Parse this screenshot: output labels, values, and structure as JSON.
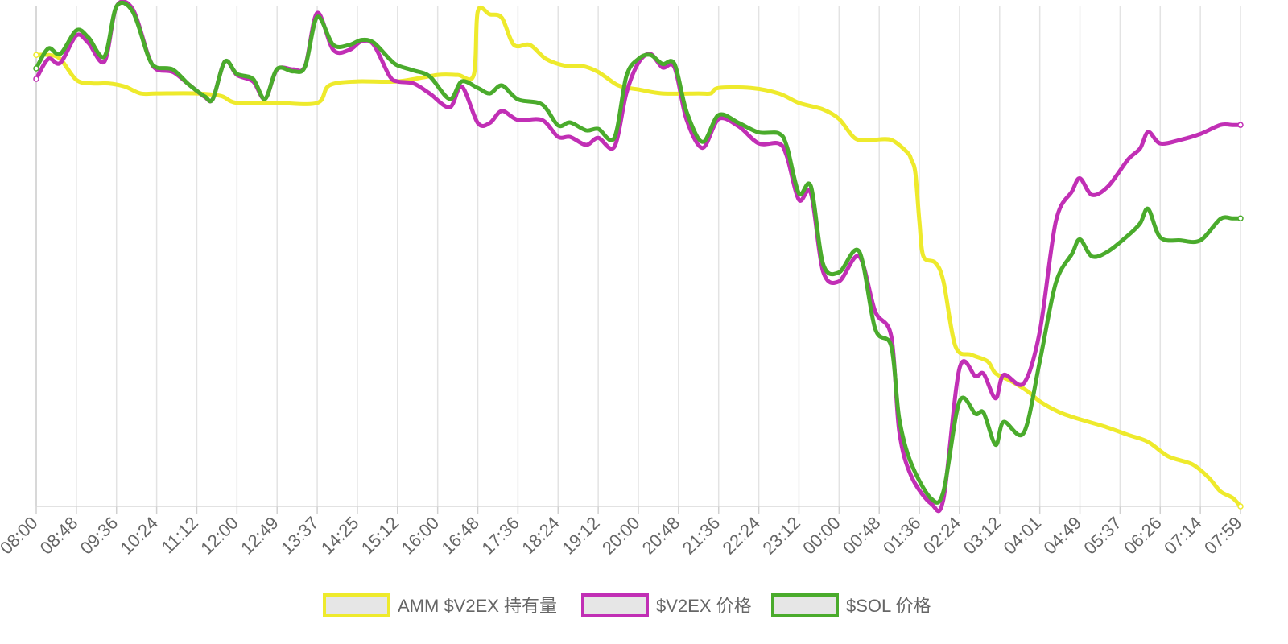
{
  "chart_data": {
    "type": "line",
    "title": "",
    "xlabel": "",
    "ylabel": "",
    "grid": "vertical",
    "legend_position": "bottom",
    "x_ticks": [
      "08:00",
      "08:48",
      "09:36",
      "10:24",
      "11:12",
      "12:00",
      "12:49",
      "13:37",
      "14:25",
      "15:12",
      "16:00",
      "16:48",
      "17:36",
      "18:24",
      "19:12",
      "20:00",
      "20:48",
      "21:36",
      "22:24",
      "23:12",
      "00:00",
      "00:48",
      "01:36",
      "02:24",
      "03:12",
      "04:01",
      "04:49",
      "05:37",
      "06:26",
      "07:14",
      "07:59"
    ],
    "x_range": [
      0,
      30
    ],
    "y_range": [
      0,
      100
    ],
    "y_axis_labels_shown": false,
    "series": [
      {
        "name": "AMM $V2EX 持有量",
        "color": "#eeea2c",
        "points": [
          [
            0,
            90.3
          ],
          [
            0.3,
            90.3
          ],
          [
            0.6,
            89.5
          ],
          [
            1,
            85.3
          ],
          [
            1.4,
            84.6
          ],
          [
            1.8,
            84.6
          ],
          [
            2.2,
            84.0
          ],
          [
            2.6,
            82.6
          ],
          [
            3,
            82.6
          ],
          [
            4,
            82.6
          ],
          [
            4.6,
            82.1
          ],
          [
            5,
            80.7
          ],
          [
            6,
            80.7
          ],
          [
            7,
            80.7
          ],
          [
            7.3,
            84.2
          ],
          [
            8,
            85.0
          ],
          [
            9,
            85.0
          ],
          [
            10,
            86.3
          ],
          [
            10.5,
            86.3
          ],
          [
            10.9,
            86.3
          ],
          [
            11,
            99.0
          ],
          [
            11.3,
            98.4
          ],
          [
            11.6,
            97.7
          ],
          [
            11.9,
            92.3
          ],
          [
            12.3,
            92.3
          ],
          [
            12.7,
            89.5
          ],
          [
            13.2,
            88.1
          ],
          [
            13.6,
            88.1
          ],
          [
            14,
            86.9
          ],
          [
            14.5,
            84.2
          ],
          [
            15,
            83.4
          ],
          [
            15.6,
            82.6
          ],
          [
            16.5,
            82.6
          ],
          [
            16.8,
            82.6
          ],
          [
            17,
            83.7
          ],
          [
            17.8,
            83.7
          ],
          [
            18.5,
            82.6
          ],
          [
            19,
            80.7
          ],
          [
            19.6,
            79.4
          ],
          [
            20,
            77.5
          ],
          [
            20.4,
            73.6
          ],
          [
            20.8,
            73.3
          ],
          [
            21.3,
            73.3
          ],
          [
            21.7,
            70.8
          ],
          [
            21.8,
            69.3
          ],
          [
            21.9,
            66.7
          ],
          [
            22,
            57.0
          ],
          [
            22.1,
            50.0
          ],
          [
            22.4,
            48.7
          ],
          [
            22.6,
            45.0
          ],
          [
            22.9,
            32.0
          ],
          [
            23.3,
            30.3
          ],
          [
            23.7,
            29.0
          ],
          [
            23.9,
            26.6
          ],
          [
            24.3,
            25.0
          ],
          [
            24.7,
            23.0
          ],
          [
            25,
            21.0
          ],
          [
            25.5,
            18.8
          ],
          [
            26,
            17.4
          ],
          [
            26.6,
            16.0
          ],
          [
            27.2,
            14.3
          ],
          [
            27.7,
            12.9
          ],
          [
            28.2,
            10.0
          ],
          [
            28.8,
            8.4
          ],
          [
            29.2,
            5.8
          ],
          [
            29.5,
            3.0
          ],
          [
            29.8,
            1.7
          ],
          [
            30,
            0.0
          ]
        ]
      },
      {
        "name": "$V2EX 价格",
        "color": "#c12fb5",
        "points": [
          [
            0,
            85.5
          ],
          [
            0.3,
            89.5
          ],
          [
            0.6,
            88.7
          ],
          [
            1,
            94.2
          ],
          [
            1.3,
            92.7
          ],
          [
            1.7,
            89.0
          ],
          [
            2,
            100.0
          ],
          [
            2.4,
            99.5
          ],
          [
            2.8,
            90.0
          ],
          [
            3,
            87.4
          ],
          [
            3.4,
            86.9
          ],
          [
            3.8,
            84.4
          ],
          [
            4.2,
            81.9
          ],
          [
            4.4,
            81.5
          ],
          [
            4.7,
            89.0
          ],
          [
            5,
            86.3
          ],
          [
            5.4,
            85.0
          ],
          [
            5.7,
            81.5
          ],
          [
            6,
            87.4
          ],
          [
            6.4,
            87.4
          ],
          [
            6.7,
            88.1
          ],
          [
            7,
            98.7
          ],
          [
            7.4,
            91.3
          ],
          [
            7.8,
            91.3
          ],
          [
            8.1,
            93.0
          ],
          [
            8.4,
            92.4
          ],
          [
            8.8,
            86.1
          ],
          [
            9,
            85.0
          ],
          [
            9.4,
            84.6
          ],
          [
            9.8,
            82.6
          ],
          [
            10.3,
            79.8
          ],
          [
            10.6,
            84.0
          ],
          [
            11,
            76.7
          ],
          [
            11.3,
            76.7
          ],
          [
            11.6,
            79.1
          ],
          [
            12,
            77.3
          ],
          [
            12.6,
            77.3
          ],
          [
            13,
            73.9
          ],
          [
            13.3,
            73.9
          ],
          [
            13.7,
            72.3
          ],
          [
            14,
            73.7
          ],
          [
            14.4,
            71.9
          ],
          [
            14.7,
            82.6
          ],
          [
            15,
            88.7
          ],
          [
            15.3,
            90.5
          ],
          [
            15.6,
            87.8
          ],
          [
            15.9,
            87.8
          ],
          [
            16.2,
            77.4
          ],
          [
            16.6,
            71.7
          ],
          [
            17,
            77.5
          ],
          [
            17.5,
            76.0
          ],
          [
            18,
            72.6
          ],
          [
            18.5,
            72.6
          ],
          [
            18.7,
            70.0
          ],
          [
            19,
            61.3
          ],
          [
            19.3,
            62.6
          ],
          [
            19.6,
            47.0
          ],
          [
            20,
            45.0
          ],
          [
            20.5,
            50.0
          ],
          [
            20.9,
            39.0
          ],
          [
            21.3,
            34.0
          ],
          [
            21.5,
            15.0
          ],
          [
            21.8,
            6.0
          ],
          [
            22.3,
            0.5
          ],
          [
            22.6,
            1.5
          ],
          [
            23,
            27.6
          ],
          [
            23.4,
            26.0
          ],
          [
            23.6,
            26.5
          ],
          [
            23.9,
            21.6
          ],
          [
            24.1,
            26.3
          ],
          [
            24.6,
            24.6
          ],
          [
            25,
            35.0
          ],
          [
            25.4,
            57.0
          ],
          [
            25.8,
            63.0
          ],
          [
            26,
            65.6
          ],
          [
            26.3,
            62.3
          ],
          [
            26.7,
            64.0
          ],
          [
            27.2,
            69.4
          ],
          [
            27.5,
            71.6
          ],
          [
            27.7,
            74.9
          ],
          [
            28,
            72.6
          ],
          [
            28.5,
            73.3
          ],
          [
            29,
            74.5
          ],
          [
            29.5,
            76.3
          ],
          [
            29.8,
            76.3
          ],
          [
            30,
            76.3
          ]
        ]
      },
      {
        "name": "$SOL 价格",
        "color": "#4aab2c",
        "points": [
          [
            0,
            87.6
          ],
          [
            0.3,
            91.6
          ],
          [
            0.6,
            90.5
          ],
          [
            1,
            95.2
          ],
          [
            1.3,
            93.8
          ],
          [
            1.7,
            90.0
          ],
          [
            2,
            100.0
          ],
          [
            2.4,
            99.0
          ],
          [
            2.8,
            89.8
          ],
          [
            3,
            87.8
          ],
          [
            3.4,
            87.4
          ],
          [
            3.8,
            84.4
          ],
          [
            4.2,
            82.0
          ],
          [
            4.4,
            81.5
          ],
          [
            4.7,
            89.0
          ],
          [
            5,
            86.5
          ],
          [
            5.4,
            85.5
          ],
          [
            5.7,
            81.5
          ],
          [
            6,
            87.5
          ],
          [
            6.4,
            87.0
          ],
          [
            6.7,
            88.0
          ],
          [
            7,
            97.9
          ],
          [
            7.4,
            92.3
          ],
          [
            7.8,
            92.3
          ],
          [
            8.1,
            93.3
          ],
          [
            8.4,
            92.8
          ],
          [
            8.8,
            89.5
          ],
          [
            9,
            88.2
          ],
          [
            9.4,
            87.2
          ],
          [
            9.8,
            86.0
          ],
          [
            10.3,
            81.5
          ],
          [
            10.6,
            85.0
          ],
          [
            11,
            83.7
          ],
          [
            11.3,
            82.6
          ],
          [
            11.6,
            84.2
          ],
          [
            12,
            81.4
          ],
          [
            12.6,
            80.4
          ],
          [
            13,
            76.2
          ],
          [
            13.3,
            76.8
          ],
          [
            13.7,
            75.2
          ],
          [
            14,
            75.5
          ],
          [
            14.4,
            73.7
          ],
          [
            14.7,
            86.0
          ],
          [
            15,
            89.5
          ],
          [
            15.3,
            90.3
          ],
          [
            15.6,
            88.5
          ],
          [
            15.9,
            88.5
          ],
          [
            16.2,
            79.0
          ],
          [
            16.6,
            72.9
          ],
          [
            17,
            78.3
          ],
          [
            17.5,
            76.7
          ],
          [
            18,
            74.8
          ],
          [
            18.5,
            74.6
          ],
          [
            18.7,
            72.0
          ],
          [
            19,
            62.6
          ],
          [
            19.3,
            64.0
          ],
          [
            19.6,
            48.5
          ],
          [
            20,
            46.8
          ],
          [
            20.5,
            51.0
          ],
          [
            20.9,
            35.5
          ],
          [
            21.3,
            32.0
          ],
          [
            21.5,
            17.5
          ],
          [
            21.8,
            8.5
          ],
          [
            22.3,
            1.5
          ],
          [
            22.6,
            3.0
          ],
          [
            23,
            21.0
          ],
          [
            23.4,
            18.5
          ],
          [
            23.6,
            18.7
          ],
          [
            23.9,
            12.3
          ],
          [
            24.1,
            16.9
          ],
          [
            24.6,
            14.7
          ],
          [
            25,
            29.0
          ],
          [
            25.4,
            44.7
          ],
          [
            25.8,
            50.5
          ],
          [
            26,
            53.4
          ],
          [
            26.3,
            50.0
          ],
          [
            26.7,
            51.0
          ],
          [
            27.2,
            54.2
          ],
          [
            27.5,
            56.6
          ],
          [
            27.7,
            59.5
          ],
          [
            28,
            53.8
          ],
          [
            28.5,
            53.2
          ],
          [
            29,
            53.2
          ],
          [
            29.5,
            57.5
          ],
          [
            29.8,
            57.6
          ],
          [
            30,
            57.6
          ]
        ]
      }
    ]
  }
}
